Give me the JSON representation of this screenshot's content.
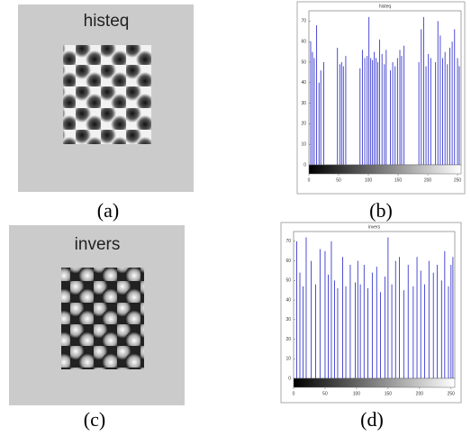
{
  "images": [
    {
      "title": "histeq",
      "caption": "(a)"
    },
    {
      "title": "invers",
      "caption": "(c)"
    }
  ],
  "chart_data": [
    {
      "type": "stem",
      "title": "histeq",
      "caption": "(b)",
      "color": "#3a3ad0",
      "x": [
        3,
        6,
        9,
        13,
        17,
        20,
        25,
        48,
        52,
        55,
        58,
        62,
        86,
        90,
        94,
        98,
        101,
        104,
        107,
        110,
        113,
        116,
        119,
        123,
        127,
        130,
        137,
        141,
        145,
        149,
        153,
        156,
        160,
        185,
        189,
        193,
        197,
        201,
        205,
        213,
        217,
        221,
        225,
        229,
        233,
        237,
        241,
        245,
        250,
        253
      ],
      "values": [
        60,
        55,
        52,
        68,
        40,
        46,
        50,
        57,
        49,
        50,
        48,
        53,
        47,
        56,
        52,
        53,
        72,
        52,
        51,
        55,
        52,
        50,
        61,
        54,
        49,
        56,
        46,
        50,
        48,
        52,
        56,
        53,
        58,
        50,
        66,
        72,
        48,
        54,
        52,
        50,
        70,
        63,
        52,
        55,
        49,
        57,
        60,
        66,
        52,
        48
      ],
      "xlim": [
        0,
        256
      ],
      "ylim": [
        0,
        75
      ],
      "xticks": [
        0,
        50,
        100,
        150,
        200,
        250
      ],
      "yticks": [
        0,
        10,
        20,
        30,
        40,
        50,
        60,
        70
      ]
    },
    {
      "type": "stem",
      "title": "invers",
      "caption": "(d)",
      "color": "#3a3ad0",
      "x": [
        5,
        10,
        15,
        20,
        28,
        35,
        42,
        50,
        55,
        60,
        65,
        70,
        78,
        83,
        90,
        98,
        102,
        106,
        112,
        118,
        125,
        132,
        138,
        145,
        150,
        156,
        162,
        168,
        175,
        182,
        190,
        196,
        202,
        208,
        215,
        222,
        228,
        235,
        240,
        246,
        250,
        253
      ],
      "values": [
        70,
        54,
        47,
        72,
        60,
        48,
        66,
        65,
        53,
        70,
        50,
        46,
        62,
        47,
        58,
        49,
        60,
        48,
        58,
        46,
        54,
        57,
        44,
        52,
        72,
        48,
        60,
        62,
        45,
        58,
        47,
        62,
        55,
        48,
        60,
        54,
        58,
        50,
        65,
        47,
        58,
        62
      ],
      "xlim": [
        0,
        256
      ],
      "ylim": [
        0,
        75
      ],
      "xticks": [
        0,
        50,
        100,
        150,
        200,
        250
      ],
      "yticks": [
        0,
        10,
        20,
        30,
        40,
        50,
        60,
        70
      ]
    }
  ]
}
